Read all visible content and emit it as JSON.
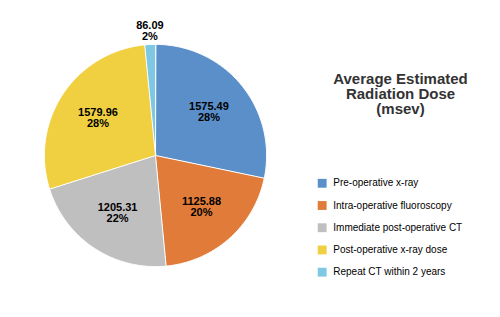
{
  "chart_data": {
    "type": "pie",
    "title": "Average Estimated\nRadiation Dose\n(msev)",
    "categories": [
      "Pre-operative x-ray",
      "Intra-operative fluoroscopy",
      "Immediate post-operative CT",
      "Post-operative x-ray dose",
      "Repeat CT within 2 years"
    ],
    "values": [
      1575.49,
      1125.88,
      1205.31,
      1579.96,
      86.09
    ],
    "value_labels": [
      "1575.49\n28%",
      "1125.88\n20%",
      "1205.31\n22%",
      "1579.96\n28%",
      "86.09\n2%"
    ],
    "colors": [
      "#5b8fc9",
      "#e07b3a",
      "#c0bfbf",
      "#f0d040",
      "#7ec8e3"
    ],
    "data_labels": true,
    "legend": "right"
  }
}
